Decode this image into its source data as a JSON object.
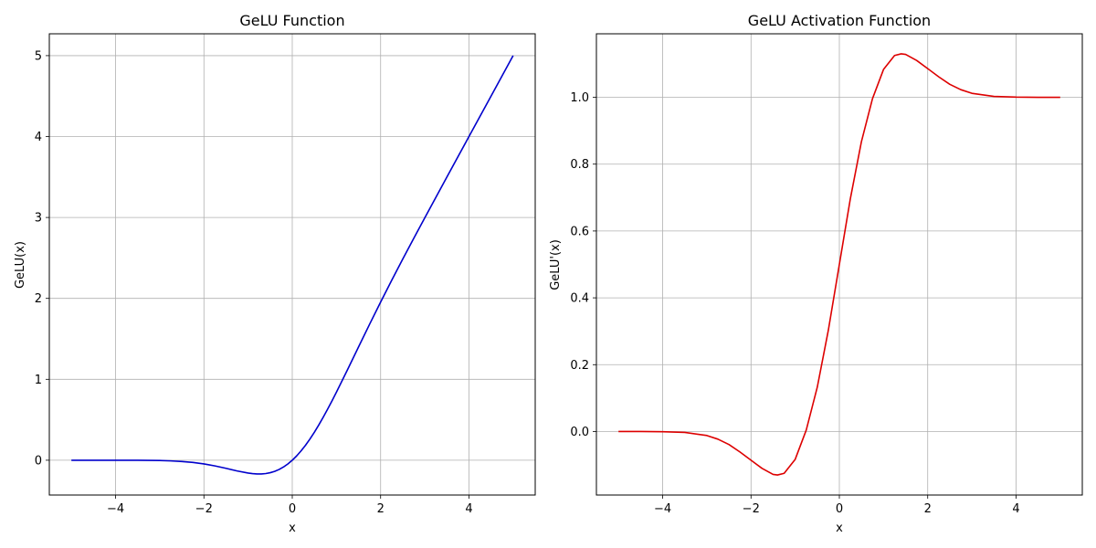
{
  "chart_data": [
    {
      "type": "line",
      "title": "GeLU Function",
      "xlabel": "x",
      "ylabel": "GeLU(x)",
      "xlim": [
        -5.5,
        5.5
      ],
      "ylim": [
        -0.43,
        5.27
      ],
      "xticks": [
        -4,
        -2,
        0,
        2,
        4
      ],
      "xtick_labels": [
        "−4",
        "−2",
        "0",
        "2",
        "4"
      ],
      "yticks": [
        0,
        1,
        2,
        3,
        4,
        5
      ],
      "ytick_labels": [
        "0",
        "1",
        "2",
        "3",
        "4",
        "5"
      ],
      "grid": true,
      "series": [
        {
          "color": "#0000cc",
          "x": [
            -5,
            -4.5,
            -4,
            -3.5,
            -3,
            -2.75,
            -2.5,
            -2.25,
            -2,
            -1.75,
            -1.5,
            -1.25,
            -1,
            -0.9,
            -0.8,
            -0.75,
            -0.7,
            -0.6,
            -0.5,
            -0.4,
            -0.3,
            -0.2,
            -0.1,
            0,
            0.1,
            0.2,
            0.3,
            0.4,
            0.5,
            0.6,
            0.7,
            0.8,
            0.9,
            1,
            1.25,
            1.5,
            1.75,
            2,
            2.25,
            2.5,
            2.75,
            3,
            3.5,
            4,
            4.5,
            5
          ],
          "y": [
            0,
            0,
            -0.0001,
            -0.0008,
            -0.0036,
            -0.0082,
            -0.0155,
            -0.0275,
            -0.0455,
            -0.07,
            -0.1002,
            -0.132,
            -0.1587,
            -0.1657,
            -0.1695,
            -0.17,
            -0.1694,
            -0.1646,
            -0.1543,
            -0.1379,
            -0.1148,
            -0.0841,
            -0.046,
            0,
            0.054,
            0.1159,
            0.1854,
            0.2621,
            0.3457,
            0.4354,
            0.5306,
            0.6305,
            0.7343,
            0.8413,
            1.118,
            1.3998,
            1.68,
            1.9545,
            2.2225,
            2.4845,
            2.7418,
            2.996,
            3.4992,
            3.9999,
            4.5,
            5.0
          ]
        }
      ]
    },
    {
      "type": "line",
      "title": "GeLU Activation Function",
      "xlabel": "x",
      "ylabel": "GeLU'(x)",
      "xlim": [
        -5.5,
        5.5
      ],
      "ylim": [
        -0.19,
        1.19
      ],
      "xticks": [
        -4,
        -2,
        0,
        2,
        4
      ],
      "xtick_labels": [
        "−4",
        "−2",
        "0",
        "2",
        "4"
      ],
      "yticks": [
        0.0,
        0.2,
        0.4,
        0.6,
        0.8,
        1.0
      ],
      "ytick_labels": [
        "0.0",
        "0.2",
        "0.4",
        "0.6",
        "0.8",
        "1.0"
      ],
      "grid": true,
      "series": [
        {
          "color": "#dd0000",
          "x": [
            -5,
            -4.5,
            -4,
            -3.5,
            -3,
            -2.75,
            -2.5,
            -2.25,
            -2,
            -1.75,
            -1.5,
            -1.4,
            -1.25,
            -1,
            -0.75,
            -0.5,
            -0.25,
            0,
            0.25,
            0.5,
            0.75,
            1,
            1.25,
            1.4,
            1.5,
            1.75,
            2,
            2.25,
            2.5,
            2.75,
            3,
            3.5,
            4,
            4.5,
            5
          ],
          "y": [
            0,
            0,
            -0.0005,
            -0.0027,
            -0.0119,
            -0.0228,
            -0.0389,
            -0.0612,
            -0.0859,
            -0.1103,
            -0.1283,
            -0.13,
            -0.1251,
            -0.0833,
            0.0042,
            0.1325,
            0.3027,
            0.5,
            0.6973,
            0.8675,
            0.9958,
            1.0833,
            1.1251,
            1.13,
            1.1283,
            1.1103,
            1.0859,
            1.0612,
            1.0389,
            1.0228,
            1.0119,
            1.0027,
            1.0005,
            1.0,
            1.0
          ]
        }
      ]
    }
  ]
}
